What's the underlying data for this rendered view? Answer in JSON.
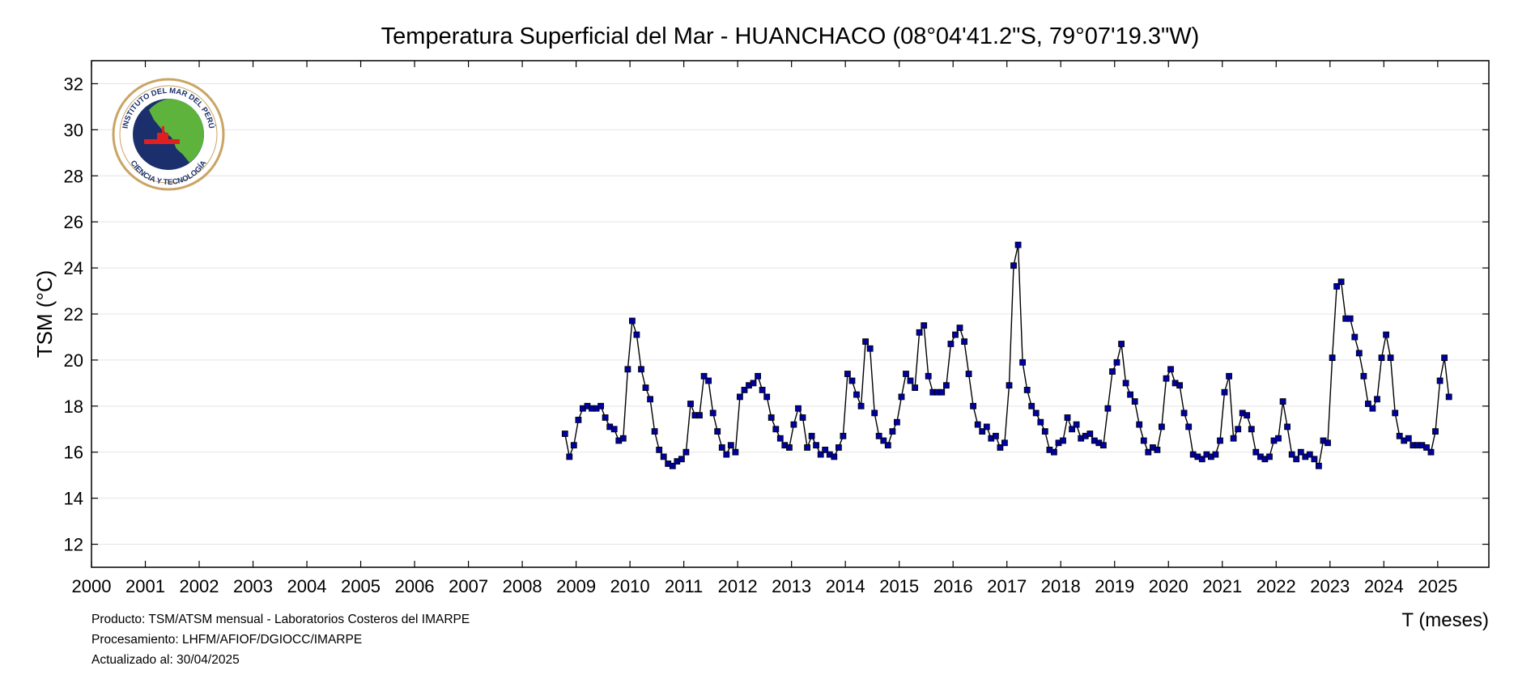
{
  "chart_data": {
    "type": "line",
    "title": "Temperatura Superficial del Mar - HUANCHACO (08°04'41.2\"S, 79°07'19.3\"W)",
    "xlabel": "T (meses)",
    "ylabel": "TSM (°C)",
    "xlim": [
      2000,
      2025.95
    ],
    "ylim": [
      11,
      33
    ],
    "x_ticks": [
      "2000",
      "2001",
      "2002",
      "2003",
      "2004",
      "2005",
      "2006",
      "2007",
      "2008",
      "2009",
      "2010",
      "2011",
      "2012",
      "2013",
      "2014",
      "2015",
      "2016",
      "2017",
      "2018",
      "2019",
      "2020",
      "2021",
      "2022",
      "2023",
      "2024",
      "2025"
    ],
    "y_ticks": [
      "12",
      "14",
      "16",
      "18",
      "20",
      "22",
      "24",
      "26",
      "28",
      "30",
      "32"
    ],
    "grid": "horizontal",
    "start": "2008-10",
    "series": [
      {
        "color": "#0000a0",
        "values": [
          16.8,
          15.8,
          16.3,
          17.4,
          17.9,
          18.0,
          17.9,
          17.9,
          18.0,
          17.5,
          17.1,
          17.0,
          16.5,
          16.6,
          19.6,
          21.7,
          21.1,
          19.6,
          18.8,
          18.3,
          16.9,
          16.1,
          15.8,
          15.5,
          15.4,
          15.6,
          15.7,
          16.0,
          18.1,
          17.6,
          17.6,
          19.3,
          19.1,
          17.7,
          16.9,
          16.2,
          15.9,
          16.3,
          16.0,
          18.4,
          18.7,
          18.9,
          19.0,
          19.3,
          18.7,
          18.4,
          17.5,
          17.0,
          16.6,
          16.3,
          16.2,
          17.2,
          17.9,
          17.5,
          16.2,
          16.7,
          16.3,
          15.9,
          16.1,
          15.9,
          15.8,
          16.2,
          16.7,
          19.4,
          19.1,
          18.5,
          18.0,
          20.8,
          20.5,
          17.7,
          16.7,
          16.5,
          16.3,
          16.9,
          17.3,
          18.4,
          19.4,
          19.1,
          18.8,
          21.2,
          21.5,
          19.3,
          18.6,
          18.6,
          18.6,
          18.9,
          20.7,
          21.1,
          21.4,
          20.8,
          19.4,
          18.0,
          17.2,
          16.9,
          17.1,
          16.6,
          16.7,
          16.2,
          16.4,
          18.9,
          24.1,
          25.0,
          19.9,
          18.7,
          18.0,
          17.7,
          17.3,
          16.9,
          16.1,
          16.0,
          16.4,
          16.5,
          17.5,
          17.0,
          17.2,
          16.6,
          16.7,
          16.8,
          16.5,
          16.4,
          16.3,
          17.9,
          19.5,
          19.9,
          20.7,
          19.0,
          18.5,
          18.2,
          17.2,
          16.5,
          16.0,
          16.2,
          16.1,
          17.1,
          19.2,
          19.6,
          19.0,
          18.9,
          17.7,
          17.1,
          15.9,
          15.8,
          15.7,
          15.9,
          15.8,
          15.9,
          16.5,
          18.6,
          19.3,
          16.6,
          17.0,
          17.7,
          17.6,
          17.0,
          16.0,
          15.8,
          15.7,
          15.8,
          16.5,
          16.6,
          18.2,
          17.1,
          15.9,
          15.7,
          16.0,
          15.8,
          15.9,
          15.7,
          15.4,
          16.5,
          16.4,
          20.1,
          23.2,
          23.4,
          21.8,
          21.8,
          21.0,
          20.3,
          19.3,
          18.1,
          17.9,
          18.3,
          20.1,
          21.1,
          20.1,
          17.7,
          16.7,
          16.5,
          16.6,
          16.3,
          16.3,
          16.3,
          16.2,
          16.0,
          16.9,
          19.1,
          20.1,
          18.4
        ]
      }
    ]
  },
  "footer": {
    "producto": "Producto: TSM/ATSM mensual - Laboratorios Costeros del IMARPE",
    "procesamiento": "Procesamiento: LHFM/AFIOF/DGIOCC/IMARPE",
    "actualizado": "Actualizado al: 30/04/2025"
  },
  "logo": {
    "ring_text_top": "INSTITUTO DEL MAR DEL PERÚ",
    "ring_text_bottom": "CIENCIA Y TECNOLOGÍA",
    "ring_color": "#c9a464",
    "sea_color": "#1a2f6b",
    "land_color": "#5db33b",
    "ship_color": "#e02020"
  }
}
